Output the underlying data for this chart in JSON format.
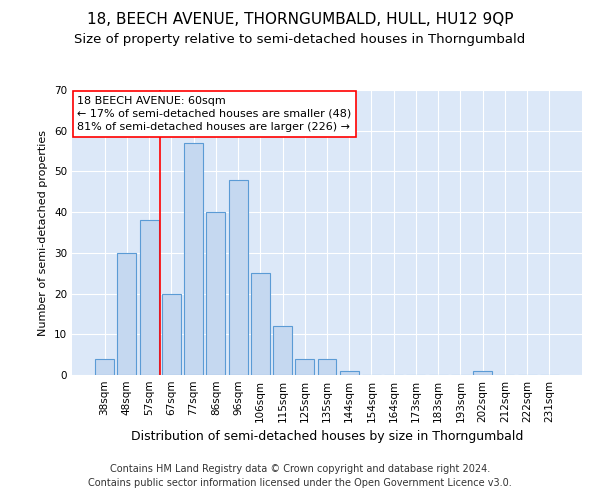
{
  "title1": "18, BEECH AVENUE, THORNGUMBALD, HULL, HU12 9QP",
  "title2": "Size of property relative to semi-detached houses in Thorngumbald",
  "xlabel": "Distribution of semi-detached houses by size in Thorngumbald",
  "ylabel": "Number of semi-detached properties",
  "categories": [
    "38sqm",
    "48sqm",
    "57sqm",
    "67sqm",
    "77sqm",
    "86sqm",
    "96sqm",
    "106sqm",
    "115sqm",
    "125sqm",
    "135sqm",
    "144sqm",
    "154sqm",
    "164sqm",
    "173sqm",
    "183sqm",
    "193sqm",
    "202sqm",
    "212sqm",
    "222sqm",
    "231sqm"
  ],
  "values": [
    4,
    30,
    38,
    20,
    57,
    40,
    48,
    25,
    12,
    4,
    4,
    1,
    0,
    0,
    0,
    0,
    0,
    1,
    0,
    0,
    0
  ],
  "bar_color": "#c5d8f0",
  "bar_edge_color": "#5b9bd5",
  "background_color": "#dce8f8",
  "ylim": [
    0,
    70
  ],
  "yticks": [
    0,
    10,
    20,
    30,
    40,
    50,
    60,
    70
  ],
  "red_line_x": 2.5,
  "annotation_title": "18 BEECH AVENUE: 60sqm",
  "annotation_line1": "← 17% of semi-detached houses are smaller (48)",
  "annotation_line2": "81% of semi-detached houses are larger (226) →",
  "footer1": "Contains HM Land Registry data © Crown copyright and database right 2024.",
  "footer2": "Contains public sector information licensed under the Open Government Licence v3.0.",
  "title1_fontsize": 11,
  "title2_fontsize": 9.5,
  "annotation_fontsize": 8,
  "tick_fontsize": 7.5,
  "xlabel_fontsize": 9,
  "ylabel_fontsize": 8,
  "footer_fontsize": 7
}
